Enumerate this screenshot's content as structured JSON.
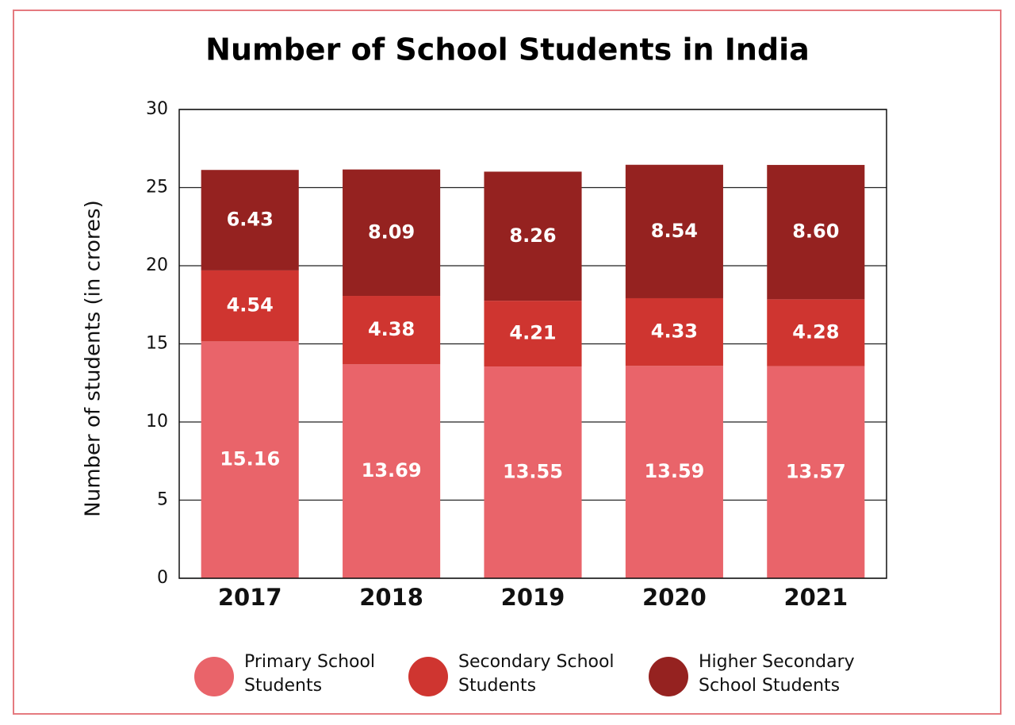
{
  "chart_data": {
    "type": "stacked_bar",
    "title": "Number of School Students in India",
    "y_label": "Number of students (in crores)",
    "categories": [
      "2017",
      "2018",
      "2019",
      "2020",
      "2021"
    ],
    "series": [
      {
        "name": "Primary School Students",
        "color": "#e9646a",
        "values": [
          15.16,
          13.69,
          13.55,
          13.59,
          13.57
        ]
      },
      {
        "name": "Secondary School Students",
        "color": "#cf3530",
        "values": [
          4.54,
          4.38,
          4.21,
          4.33,
          4.28
        ]
      },
      {
        "name": "Higher Secondary School Students",
        "color": "#952220",
        "values": [
          6.43,
          8.09,
          8.26,
          8.54,
          8.6
        ],
        "value_labels": [
          "6.43",
          "8.09",
          "8.26",
          "8.54",
          "8.60"
        ]
      }
    ],
    "ylim": [
      0,
      30
    ],
    "yticks": [
      0,
      5,
      10,
      15,
      20,
      25,
      30
    ],
    "grid": true
  }
}
